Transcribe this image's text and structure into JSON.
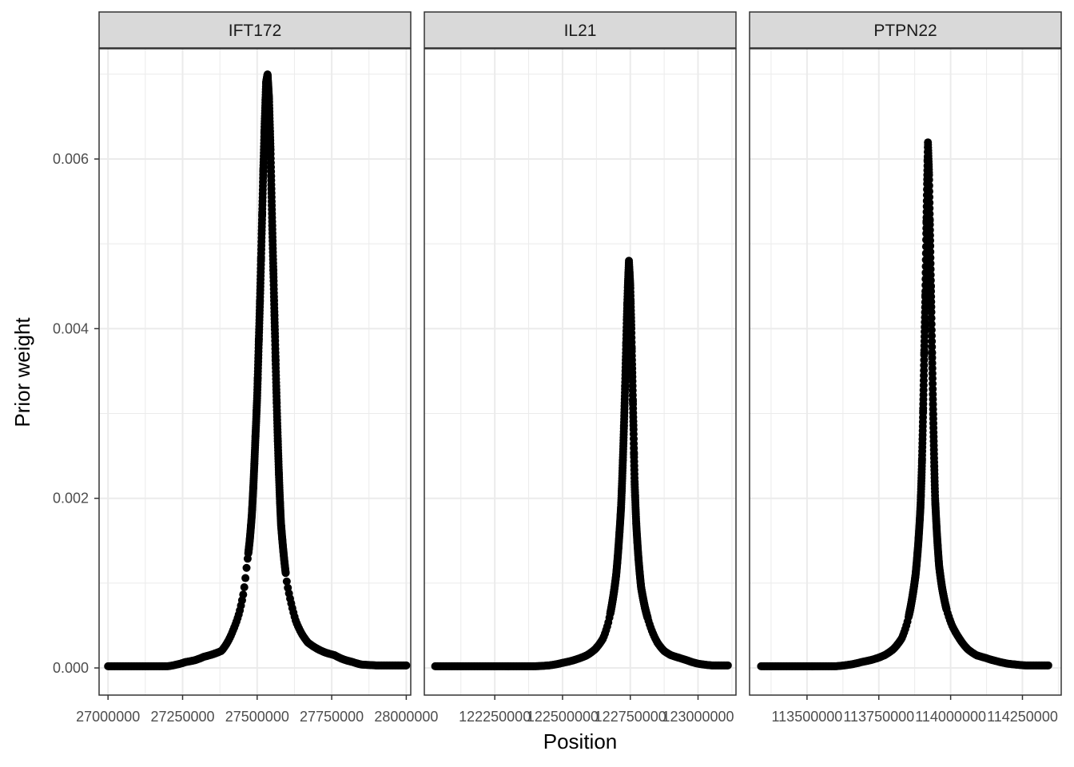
{
  "chart_data": {
    "type": "scatter",
    "xlabel": "Position",
    "ylabel": "Prior weight",
    "ylim": [
      -0.00032,
      0.0073
    ],
    "y_ticks": [
      0.0,
      0.002,
      0.004,
      0.006
    ],
    "y_tick_labels": [
      "0.000",
      "0.002",
      "0.004",
      "0.006"
    ],
    "grid": true,
    "marker_color": "#000000",
    "panels": [
      {
        "name": "IFT172",
        "xlim": [
          26970000,
          28015000
        ],
        "x_ticks": [
          27000000,
          27250000,
          27500000,
          27750000,
          28000000
        ],
        "x_tick_labels": [
          "27000000",
          "27250000",
          "27500000",
          "27750000",
          "28000000"
        ],
        "peak_x": 27533000,
        "peak_y": 0.007,
        "range": [
          27000000,
          28000000
        ],
        "points": [
          [
            27000000,
            2e-05
          ],
          [
            27050000,
            2e-05
          ],
          [
            27100000,
            2e-05
          ],
          [
            27150000,
            2e-05
          ],
          [
            27200000,
            2e-05
          ],
          [
            27230000,
            4e-05
          ],
          [
            27260000,
            7e-05
          ],
          [
            27290000,
            9e-05
          ],
          [
            27320000,
            0.00013
          ],
          [
            27350000,
            0.00016
          ],
          [
            27380000,
            0.0002
          ],
          [
            27400000,
            0.0003
          ],
          [
            27420000,
            0.00045
          ],
          [
            27440000,
            0.00065
          ],
          [
            27455000,
            0.0009
          ],
          [
            27465000,
            0.0012
          ],
          [
            27475000,
            0.0015
          ],
          [
            27482000,
            0.0018
          ],
          [
            27488000,
            0.0022
          ],
          [
            27494000,
            0.0027
          ],
          [
            27500000,
            0.0032
          ],
          [
            27505000,
            0.0038
          ],
          [
            27510000,
            0.0044
          ],
          [
            27515000,
            0.0051
          ],
          [
            27520000,
            0.0058
          ],
          [
            27525000,
            0.0064
          ],
          [
            27530000,
            0.0069
          ],
          [
            27535000,
            0.007
          ],
          [
            27540000,
            0.0067
          ],
          [
            27545000,
            0.0061
          ],
          [
            27550000,
            0.0053
          ],
          [
            27555000,
            0.0046
          ],
          [
            27560000,
            0.0039
          ],
          [
            27565000,
            0.0032
          ],
          [
            27570000,
            0.0026
          ],
          [
            27575000,
            0.0021
          ],
          [
            27580000,
            0.0017
          ],
          [
            27590000,
            0.0013
          ],
          [
            27600000,
            0.001
          ],
          [
            27615000,
            0.00075
          ],
          [
            27630000,
            0.00055
          ],
          [
            27650000,
            0.0004
          ],
          [
            27670000,
            0.0003
          ],
          [
            27690000,
            0.00025
          ],
          [
            27710000,
            0.00021
          ],
          [
            27730000,
            0.00018
          ],
          [
            27760000,
            0.00015
          ],
          [
            27790000,
            0.0001
          ],
          [
            27820000,
            7e-05
          ],
          [
            27850000,
            4e-05
          ],
          [
            27900000,
            3e-05
          ],
          [
            27950000,
            3e-05
          ],
          [
            28000000,
            3e-05
          ]
        ]
      },
      {
        "name": "IL21",
        "xlim": [
          121990000,
          123140000
        ],
        "x_ticks": [
          122250000,
          122500000,
          122750000,
          123000000
        ],
        "x_tick_labels": [
          "122250000",
          "122500000",
          "122750000",
          "123000000"
        ],
        "peak_x": 122745000,
        "peak_y": 0.0048,
        "range": [
          122030000,
          123110000
        ],
        "points": [
          [
            122030000,
            2e-05
          ],
          [
            122100000,
            2e-05
          ],
          [
            122200000,
            2e-05
          ],
          [
            122300000,
            2e-05
          ],
          [
            122400000,
            2e-05
          ],
          [
            122450000,
            3e-05
          ],
          [
            122500000,
            6e-05
          ],
          [
            122550000,
            0.0001
          ],
          [
            122590000,
            0.00015
          ],
          [
            122620000,
            0.00022
          ],
          [
            122650000,
            0.00035
          ],
          [
            122670000,
            0.00055
          ],
          [
            122685000,
            0.0008
          ],
          [
            122698000,
            0.0011
          ],
          [
            122708000,
            0.0015
          ],
          [
            122716000,
            0.0019
          ],
          [
            122722000,
            0.0024
          ],
          [
            122728000,
            0.003
          ],
          [
            122733000,
            0.0036
          ],
          [
            122737000,
            0.0041
          ],
          [
            122741000,
            0.0045
          ],
          [
            122745000,
            0.0048
          ],
          [
            122750000,
            0.0045
          ],
          [
            122754000,
            0.004
          ],
          [
            122758000,
            0.0034
          ],
          [
            122762000,
            0.0028
          ],
          [
            122766000,
            0.0022
          ],
          [
            122772000,
            0.0017
          ],
          [
            122780000,
            0.0013
          ],
          [
            122790000,
            0.00095
          ],
          [
            122805000,
            0.0007
          ],
          [
            122825000,
            0.00048
          ],
          [
            122850000,
            0.0003
          ],
          [
            122875000,
            0.0002
          ],
          [
            122900000,
            0.00015
          ],
          [
            122930000,
            0.00012
          ],
          [
            122960000,
            9e-05
          ],
          [
            123000000,
            5e-05
          ],
          [
            123050000,
            3e-05
          ],
          [
            123110000,
            3e-05
          ]
        ]
      },
      {
        "name": "PTPN22",
        "xlim": [
          113300000,
          114385000
        ],
        "x_ticks": [
          113500000,
          113750000,
          114000000,
          114250000
        ],
        "x_tick_labels": [
          "113500000",
          "113750000",
          "114000000",
          "114250000"
        ],
        "peak_x": 113920000,
        "peak_y": 0.0062,
        "range": [
          113340000,
          114340000
        ],
        "points": [
          [
            113340000,
            2e-05
          ],
          [
            113400000,
            2e-05
          ],
          [
            113500000,
            2e-05
          ],
          [
            113600000,
            2e-05
          ],
          [
            113650000,
            4e-05
          ],
          [
            113690000,
            7e-05
          ],
          [
            113730000,
            0.0001
          ],
          [
            113770000,
            0.00015
          ],
          [
            113800000,
            0.00022
          ],
          [
            113830000,
            0.00035
          ],
          [
            113850000,
            0.00055
          ],
          [
            113865000,
            0.0008
          ],
          [
            113878000,
            0.0011
          ],
          [
            113888000,
            0.0015
          ],
          [
            113895000,
            0.0019
          ],
          [
            113900000,
            0.0024
          ],
          [
            113904000,
            0.003
          ],
          [
            113908000,
            0.0037
          ],
          [
            113912000,
            0.0044
          ],
          [
            113915000,
            0.0051
          ],
          [
            113918000,
            0.0057
          ],
          [
            113921000,
            0.0062
          ],
          [
            113925000,
            0.0058
          ],
          [
            113929000,
            0.005
          ],
          [
            113933000,
            0.0042
          ],
          [
            113937000,
            0.0034
          ],
          [
            113941000,
            0.0027
          ],
          [
            113946000,
            0.002
          ],
          [
            113952000,
            0.0016
          ],
          [
            113960000,
            0.0012
          ],
          [
            113970000,
            0.00095
          ],
          [
            113985000,
            0.0007
          ],
          [
            114005000,
            0.0005
          ],
          [
            114030000,
            0.00035
          ],
          [
            114060000,
            0.00022
          ],
          [
            114090000,
            0.00015
          ],
          [
            114120000,
            0.00012
          ],
          [
            114160000,
            8e-05
          ],
          [
            114200000,
            5e-05
          ],
          [
            114260000,
            3e-05
          ],
          [
            114340000,
            3e-05
          ]
        ]
      }
    ]
  }
}
